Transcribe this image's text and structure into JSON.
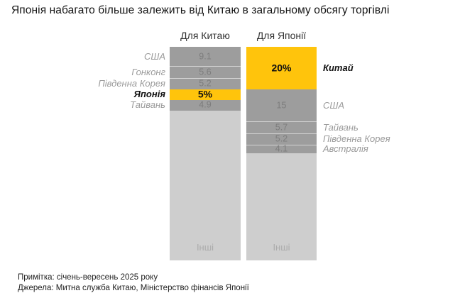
{
  "chart_data": {
    "type": "bar",
    "variant": "stacked-100pct-comparison",
    "title": "Японія набагато більше залежить від Китаю в загальному обсягу торгівлі",
    "legend_position": "none",
    "grid": false,
    "ylim": [
      0,
      100
    ],
    "columns": [
      {
        "header": "Для Китаю",
        "labels_side": "left",
        "segments": [
          {
            "label": "США",
            "value": 9.1,
            "display": "9.1",
            "highlight": false,
            "others": false,
            "divider": false
          },
          {
            "label": "Гонконг",
            "value": 5.6,
            "display": "5.6",
            "highlight": false,
            "others": false,
            "divider": true
          },
          {
            "label": "Південна Корея",
            "value": 5.2,
            "display": "5.2",
            "highlight": false,
            "others": false,
            "divider": true
          },
          {
            "label": "Японія",
            "value": 5.0,
            "display": "5%",
            "highlight": true,
            "others": false,
            "divider": false
          },
          {
            "label": "Тайвань",
            "value": 4.9,
            "display": "4.9",
            "highlight": false,
            "others": false,
            "divider": false
          },
          {
            "label": "Інші",
            "value": 70.2,
            "display": "Інші",
            "highlight": false,
            "others": true,
            "divider": false
          }
        ]
      },
      {
        "header": "Для Японії",
        "labels_side": "right",
        "segments": [
          {
            "label": "Китай",
            "value": 20.0,
            "display": "20%",
            "highlight": true,
            "others": false,
            "divider": false
          },
          {
            "label": "США",
            "value": 15.0,
            "display": "15",
            "highlight": false,
            "others": false,
            "divider": false
          },
          {
            "label": "Тайвань",
            "value": 5.7,
            "display": "5.7",
            "highlight": false,
            "others": false,
            "divider": true
          },
          {
            "label": "Південна Корея",
            "value": 5.2,
            "display": "5.2",
            "highlight": false,
            "others": false,
            "divider": true
          },
          {
            "label": "Австралія",
            "value": 4.1,
            "display": "4.1",
            "highlight": false,
            "others": false,
            "divider": true
          },
          {
            "label": "Інші",
            "value": 50.0,
            "display": "Інші",
            "highlight": false,
            "others": true,
            "divider": false
          }
        ]
      }
    ]
  },
  "footnotes": {
    "note": "Примітка: січень-вересень 2025 року",
    "sources": "Джерела: Митна служба Китаю, Міністерство фінансів Японії"
  },
  "colors": {
    "highlight": "#FFC40C",
    "segment": "#9D9D9D",
    "others": "#CECECE",
    "value_text": "#7D7D7D",
    "others_text": "#ABABAB",
    "label_text": "#9A9A9A",
    "title_text": "#141414"
  }
}
